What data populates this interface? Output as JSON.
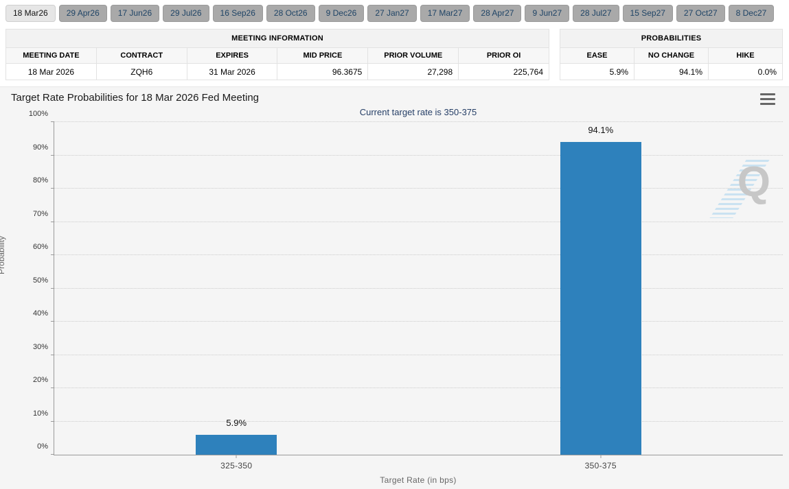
{
  "tabs": {
    "items": [
      {
        "label": "18 Mar26",
        "selected": true
      },
      {
        "label": "29 Apr26",
        "selected": false
      },
      {
        "label": "17 Jun26",
        "selected": false
      },
      {
        "label": "29 Jul26",
        "selected": false
      },
      {
        "label": "16 Sep26",
        "selected": false
      },
      {
        "label": "28 Oct26",
        "selected": false
      },
      {
        "label": "9 Dec26",
        "selected": false
      },
      {
        "label": "27 Jan27",
        "selected": false
      },
      {
        "label": "17 Mar27",
        "selected": false
      },
      {
        "label": "28 Apr27",
        "selected": false
      },
      {
        "label": "9 Jun27",
        "selected": false
      },
      {
        "label": "28 Jul27",
        "selected": false
      },
      {
        "label": "15 Sep27",
        "selected": false
      },
      {
        "label": "27 Oct27",
        "selected": false
      },
      {
        "label": "8 Dec27",
        "selected": false
      }
    ]
  },
  "meeting_info": {
    "title": "MEETING INFORMATION",
    "columns": [
      "MEETING DATE",
      "CONTRACT",
      "EXPIRES",
      "MID PRICE",
      "PRIOR VOLUME",
      "PRIOR OI"
    ],
    "row": [
      "18 Mar 2026",
      "ZQH6",
      "31 Mar 2026",
      "96.3675",
      "27,298",
      "225,764"
    ],
    "right_aligned_columns": [
      3,
      4,
      5
    ]
  },
  "probabilities": {
    "title": "PROBABILITIES",
    "columns": [
      "EASE",
      "NO CHANGE",
      "HIKE"
    ],
    "row": [
      "5.9%",
      "94.1%",
      "0.0%"
    ],
    "right_aligned_columns": [
      0,
      1,
      2
    ]
  },
  "chart": {
    "title": "Target Rate Probabilities for 18 Mar 2026 Fed Meeting",
    "subtitle": "Current target rate is 350-375",
    "watermark_letter": "Q"
  },
  "chart_data": {
    "type": "bar",
    "categories": [
      "325-350",
      "350-375"
    ],
    "values": [
      5.9,
      94.1
    ],
    "value_labels": [
      "5.9%",
      "94.1%"
    ],
    "title": "Target Rate Probabilities for 18 Mar 2026 Fed Meeting",
    "subtitle": "Current target rate is 350-375",
    "xlabel": "Target Rate (in bps)",
    "ylabel": "Probability",
    "ylim": [
      0,
      100
    ],
    "ytick_step": 10,
    "ytick_suffix": "%",
    "grid": "dotted-horizontal",
    "legend": "none",
    "bar_color": "#2e81bc"
  },
  "colors": {
    "bar": "#2e81bc",
    "subtitle_navy": "#253e66",
    "tab_text_navy": "#1f4466",
    "chart_background": "#f5f5f5"
  }
}
